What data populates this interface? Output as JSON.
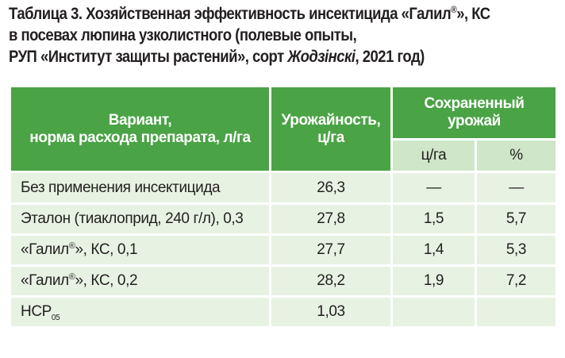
{
  "caption": {
    "line1_pre": "Таблица 3. Хозяйственная эффективность инсектицида «Галил",
    "line1_reg": "®",
    "line1_post": "», КС",
    "line2": "в посевах люпина узколистного (полевые опыты,",
    "line3_pre": "РУП «Институт защиты растений», сорт ",
    "line3_variety": "Жодзінскі",
    "line3_post": ", 2021 год)"
  },
  "table": {
    "headers": {
      "variant_line1": "Вариант,",
      "variant_line2": "норма расхода препарата, л/га",
      "yield_line1": "Урожайность,",
      "yield_line2": "ц/га",
      "saved_line1": "Сохраненный",
      "saved_line2": "урожай",
      "saved_unit1": "ц/га",
      "saved_unit2": "%"
    },
    "rows": [
      {
        "name": "Без применения инсектицида",
        "yield": "26,3",
        "saved_cwt": "—",
        "saved_pct": "—"
      },
      {
        "name": "Эталон (тиаклоприд, 240 г/л), 0,3",
        "yield": "27,8",
        "saved_cwt": "1,5",
        "saved_pct": "5,7"
      },
      {
        "name_pre": "«Галил",
        "name_reg": "®",
        "name_post": "», КС, 0,1",
        "yield": "27,7",
        "saved_cwt": "1,4",
        "saved_pct": "5,3"
      },
      {
        "name_pre": "«Галил",
        "name_reg": "®",
        "name_post": "», КС, 0,2",
        "yield": "28,2",
        "saved_cwt": "1,9",
        "saved_pct": "7,2"
      },
      {
        "name_main": "НСР",
        "name_sub": "05",
        "yield": "1,03",
        "saved_cwt": "",
        "saved_pct": ""
      }
    ]
  }
}
